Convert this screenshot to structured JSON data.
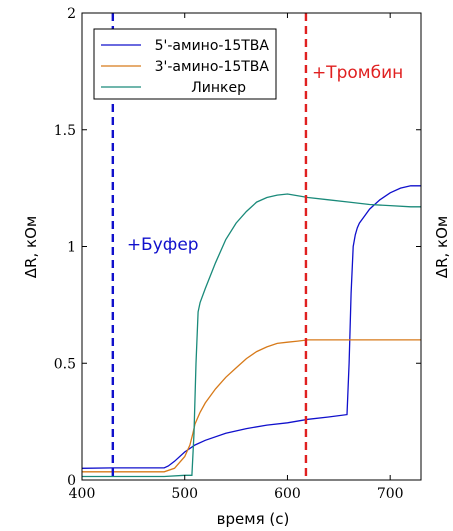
{
  "chart_data": {
    "type": "line",
    "xlabel": "время (c)",
    "ylabel": "ΔR, кОм",
    "ylabel_right": "ΔR, кОм",
    "xlim": [
      400,
      730
    ],
    "ylim": [
      0,
      2
    ],
    "x_ticks": [
      "400",
      "500",
      "600",
      "700"
    ],
    "y_ticks": [
      "0",
      "0.5",
      "1",
      "1.5",
      "2"
    ],
    "grid": false,
    "legend_position": "top-left",
    "series": [
      {
        "name": "5'-амино-15TBA",
        "color": "#1010cc",
        "x": [
          400,
          430,
          480,
          484,
          490,
          500,
          510,
          520,
          540,
          560,
          580,
          600,
          620,
          640,
          658,
          660,
          662,
          664,
          666,
          668,
          670,
          675,
          680,
          690,
          700,
          710,
          720,
          730
        ],
        "y": [
          0.05,
          0.052,
          0.052,
          0.06,
          0.08,
          0.12,
          0.15,
          0.17,
          0.2,
          0.22,
          0.235,
          0.245,
          0.26,
          0.27,
          0.28,
          0.5,
          0.8,
          1.0,
          1.05,
          1.08,
          1.1,
          1.13,
          1.16,
          1.2,
          1.23,
          1.25,
          1.26,
          1.26
        ]
      },
      {
        "name": "3'-амино-15TBA",
        "color": "#d77a1a",
        "x": [
          400,
          430,
          480,
          490,
          500,
          505,
          508,
          510,
          515,
          520,
          530,
          540,
          550,
          560,
          570,
          580,
          590,
          600,
          610,
          620,
          640,
          660,
          680,
          700,
          720,
          730
        ],
        "y": [
          0.035,
          0.035,
          0.035,
          0.05,
          0.1,
          0.15,
          0.2,
          0.24,
          0.29,
          0.33,
          0.39,
          0.44,
          0.48,
          0.52,
          0.55,
          0.57,
          0.585,
          0.59,
          0.595,
          0.6,
          0.6,
          0.6,
          0.6,
          0.6,
          0.6,
          0.6
        ]
      },
      {
        "name": "Линкер",
        "color": "#1a8a7a",
        "x": [
          400,
          430,
          480,
          500,
          507,
          509,
          511,
          513,
          515,
          520,
          530,
          540,
          550,
          560,
          570,
          580,
          590,
          600,
          620,
          640,
          660,
          680,
          700,
          720,
          730
        ],
        "y": [
          0.015,
          0.015,
          0.015,
          0.02,
          0.02,
          0.2,
          0.5,
          0.72,
          0.76,
          0.82,
          0.93,
          1.03,
          1.1,
          1.15,
          1.19,
          1.21,
          1.22,
          1.225,
          1.21,
          1.2,
          1.19,
          1.18,
          1.175,
          1.17,
          1.17
        ]
      }
    ],
    "annotations": [
      {
        "text": "+Буфер",
        "x": 430,
        "color": "#1010cc"
      },
      {
        "text": "+Тромбин",
        "x": 618,
        "color": "#e02020"
      }
    ]
  }
}
